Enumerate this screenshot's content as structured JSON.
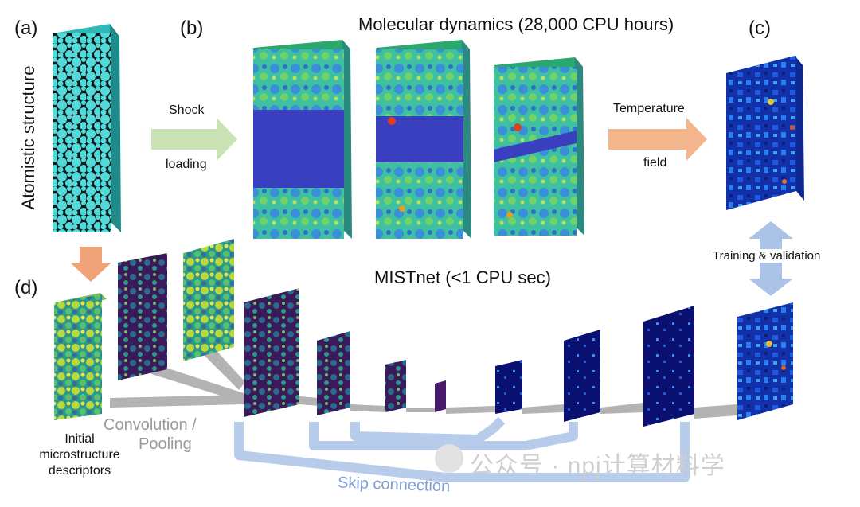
{
  "panel_labels": {
    "a": "(a)",
    "b": "(b)",
    "c": "(c)",
    "d": "(d)"
  },
  "atomistic_label": "Atomistic structure",
  "md_title": "Molecular dynamics (28,000 CPU hours)",
  "shock_line1": "Shock",
  "shock_line2": "loading",
  "temp_line1": "Temperature",
  "temp_line2": "field",
  "training_label": "Training & validation",
  "mistnet_title": "MISTnet (<1 CPU sec)",
  "initial_line1": "Initial",
  "initial_line2": "microstructure",
  "initial_line3": "descriptors",
  "conv_line1": "Convolution /",
  "conv_line2": "Pooling",
  "skip_label": "Skip connection",
  "watermark": "公众号 · npj计算材料学",
  "colors": {
    "shock_arrow": "#c9e3b5",
    "temp_arrow": "#f3b58c",
    "orange_arrow": "#f0a278",
    "training_arrow": "#aac3e6",
    "skip_lines": "#b7cbeb",
    "conv_lines": "#b3b3b3",
    "cyan_structure": "#4fd8d8",
    "md_blue_band": "#3a3fbf"
  }
}
